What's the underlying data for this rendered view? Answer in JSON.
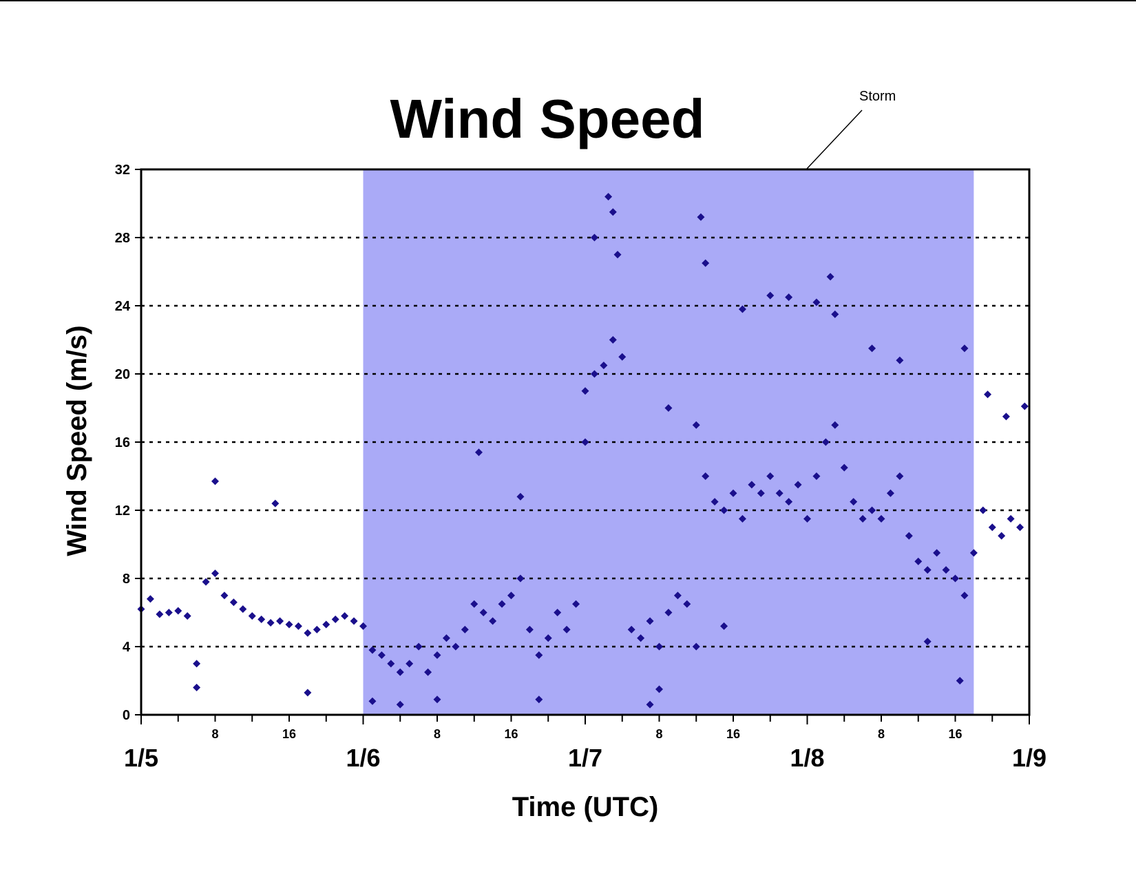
{
  "chart_data": {
    "type": "scatter",
    "title": "Wind Speed",
    "xlabel": "Time (UTC)",
    "ylabel": "Wind Speed (m/s)",
    "ylim": [
      0,
      32
    ],
    "xlim": [
      "1/5 00:00",
      "1/9 00:00"
    ],
    "yticks": [
      "0",
      "4",
      "8",
      "12",
      "16",
      "20",
      "24",
      "28",
      "32"
    ],
    "x_major_ticks": [
      {
        "t": "1/5 00:00",
        "label": "1/5"
      },
      {
        "t": "1/6 00:00",
        "label": "1/6"
      },
      {
        "t": "1/7 00:00",
        "label": "1/7"
      },
      {
        "t": "1/8 00:00",
        "label": "1/8"
      },
      {
        "t": "1/9 00:00",
        "label": "1/9"
      }
    ],
    "x_minor_ticks": [
      {
        "t": "1/5 08:00",
        "label": "8"
      },
      {
        "t": "1/5 16:00",
        "label": "16"
      },
      {
        "t": "1/6 08:00",
        "label": "8"
      },
      {
        "t": "1/6 16:00",
        "label": "16"
      },
      {
        "t": "1/7 08:00",
        "label": "8"
      },
      {
        "t": "1/7 16:00",
        "label": "16"
      },
      {
        "t": "1/8 08:00",
        "label": "8"
      },
      {
        "t": "1/8 16:00",
        "label": "16"
      }
    ],
    "grid": "horizontal dotted",
    "marker_color": "#1a0f8c",
    "shaded_region": {
      "label": "Storm",
      "start": "1/6 00:00",
      "end": "1/8 18:00",
      "color": "#aaaaf7"
    },
    "series": [
      {
        "points": [
          [
            "1/5 00:00",
            6.2
          ],
          [
            "1/5 01:00",
            6.8
          ],
          [
            "1/5 02:00",
            5.9
          ],
          [
            "1/5 03:00",
            6.0
          ],
          [
            "1/5 04:00",
            6.1
          ],
          [
            "1/5 05:00",
            5.8
          ],
          [
            "1/5 06:00",
            3.0
          ],
          [
            "1/5 07:00",
            7.8
          ],
          [
            "1/5 08:00",
            8.3
          ],
          [
            "1/5 09:00",
            7.0
          ],
          [
            "1/5 10:00",
            6.6
          ],
          [
            "1/5 11:00",
            6.2
          ],
          [
            "1/5 12:00",
            5.8
          ],
          [
            "1/5 13:00",
            5.6
          ],
          [
            "1/5 14:00",
            5.4
          ],
          [
            "1/5 15:00",
            5.5
          ],
          [
            "1/5 16:00",
            5.3
          ],
          [
            "1/5 17:00",
            5.2
          ],
          [
            "1/5 18:00",
            4.8
          ],
          [
            "1/5 19:00",
            5.0
          ],
          [
            "1/5 20:00",
            5.3
          ],
          [
            "1/5 21:00",
            5.6
          ],
          [
            "1/5 22:00",
            5.8
          ],
          [
            "1/5 23:00",
            5.5
          ],
          [
            "1/6 00:00",
            5.2
          ],
          [
            "1/6 01:00",
            3.8
          ],
          [
            "1/6 02:00",
            3.5
          ],
          [
            "1/6 03:00",
            3.0
          ],
          [
            "1/6 04:00",
            2.5
          ],
          [
            "1/6 05:00",
            3.0
          ],
          [
            "1/6 06:00",
            4.0
          ],
          [
            "1/6 07:00",
            2.5
          ],
          [
            "1/6 08:00",
            3.5
          ],
          [
            "1/6 09:00",
            4.5
          ],
          [
            "1/6 10:00",
            4.0
          ],
          [
            "1/6 11:00",
            5.0
          ],
          [
            "1/6 12:00",
            6.5
          ],
          [
            "1/6 13:00",
            6.0
          ],
          [
            "1/6 14:00",
            5.5
          ],
          [
            "1/6 15:00",
            6.5
          ],
          [
            "1/6 16:00",
            7.0
          ],
          [
            "1/6 17:00",
            8.0
          ],
          [
            "1/6 18:00",
            5.0
          ],
          [
            "1/6 19:00",
            3.5
          ],
          [
            "1/6 20:00",
            4.5
          ],
          [
            "1/6 21:00",
            6.0
          ],
          [
            "1/6 22:00",
            5.0
          ],
          [
            "1/6 23:00",
            6.5
          ],
          [
            "1/7 00:00",
            19.0
          ],
          [
            "1/7 01:00",
            20.0
          ],
          [
            "1/7 02:00",
            20.5
          ],
          [
            "1/7 03:00",
            22.0
          ],
          [
            "1/7 04:00",
            21.0
          ],
          [
            "1/7 05:00",
            5.0
          ],
          [
            "1/7 06:00",
            4.5
          ],
          [
            "1/7 07:00",
            5.5
          ],
          [
            "1/7 08:00",
            4.0
          ],
          [
            "1/7 09:00",
            6.0
          ],
          [
            "1/7 10:00",
            7.0
          ],
          [
            "1/7 11:00",
            6.5
          ],
          [
            "1/7 12:00",
            17.0
          ],
          [
            "1/7 13:00",
            14.0
          ],
          [
            "1/7 14:00",
            12.5
          ],
          [
            "1/7 15:00",
            12.0
          ],
          [
            "1/7 16:00",
            13.0
          ],
          [
            "1/7 17:00",
            11.5
          ],
          [
            "1/7 18:00",
            13.5
          ],
          [
            "1/7 19:00",
            13.0
          ],
          [
            "1/7 20:00",
            14.0
          ],
          [
            "1/7 21:00",
            13.0
          ],
          [
            "1/7 22:00",
            12.5
          ],
          [
            "1/7 23:00",
            13.5
          ],
          [
            "1/8 00:00",
            11.5
          ],
          [
            "1/8 01:00",
            14.0
          ],
          [
            "1/8 02:00",
            16.0
          ],
          [
            "1/8 03:00",
            17.0
          ],
          [
            "1/8 04:00",
            14.5
          ],
          [
            "1/8 05:00",
            12.5
          ],
          [
            "1/8 06:00",
            11.5
          ],
          [
            "1/8 07:00",
            12.0
          ],
          [
            "1/8 08:00",
            11.5
          ],
          [
            "1/8 09:00",
            13.0
          ],
          [
            "1/8 10:00",
            14.0
          ],
          [
            "1/8 11:00",
            10.5
          ],
          [
            "1/8 12:00",
            9.0
          ],
          [
            "1/8 13:00",
            8.5
          ],
          [
            "1/8 14:00",
            9.5
          ],
          [
            "1/8 15:00",
            8.5
          ],
          [
            "1/8 16:00",
            8.0
          ],
          [
            "1/8 17:00",
            7.0
          ],
          [
            "1/8 18:00",
            9.5
          ],
          [
            "1/8 19:00",
            12.0
          ],
          [
            "1/8 20:00",
            11.0
          ],
          [
            "1/8 21:00",
            10.5
          ],
          [
            "1/8 22:00",
            11.5
          ],
          [
            "1/8 23:00",
            11.0
          ],
          [
            "1/7 02:30",
            30.4
          ],
          [
            "1/7 03:00",
            29.5
          ],
          [
            "1/7 03:30",
            27.0
          ],
          [
            "1/7 01:00",
            28.0
          ],
          [
            "1/7 12:30",
            29.2
          ],
          [
            "1/7 13:00",
            26.5
          ],
          [
            "1/8 02:30",
            25.7
          ],
          [
            "1/8 01:00",
            24.2
          ],
          [
            "1/7 20:00",
            24.6
          ],
          [
            "1/7 22:00",
            24.5
          ],
          [
            "1/8 03:00",
            23.5
          ],
          [
            "1/7 17:00",
            23.8
          ],
          [
            "1/5 08:00",
            13.7
          ],
          [
            "1/5 14:30",
            12.4
          ],
          [
            "1/6 12:30",
            15.4
          ],
          [
            "1/6 17:00",
            12.8
          ],
          [
            "1/7 00:00",
            16.0
          ],
          [
            "1/7 09:00",
            18.0
          ],
          [
            "1/8 07:00",
            21.5
          ],
          [
            "1/8 10:00",
            20.8
          ],
          [
            "1/8 17:00",
            21.5
          ],
          [
            "1/8 23:30",
            18.1
          ],
          [
            "1/8 19:30",
            18.8
          ],
          [
            "1/8 21:30",
            17.5
          ],
          [
            "1/6 01:00",
            0.8
          ],
          [
            "1/6 04:00",
            0.6
          ],
          [
            "1/6 08:00",
            0.9
          ],
          [
            "1/6 19:00",
            0.9
          ],
          [
            "1/7 07:00",
            0.6
          ],
          [
            "1/7 08:00",
            1.5
          ],
          [
            "1/5 06:00",
            1.6
          ],
          [
            "1/5 18:00",
            1.3
          ],
          [
            "1/8 16:30",
            2.0
          ],
          [
            "1/8 13:00",
            4.3
          ],
          [
            "1/7 12:00",
            4.0
          ],
          [
            "1/7 15:00",
            5.2
          ]
        ]
      }
    ]
  }
}
